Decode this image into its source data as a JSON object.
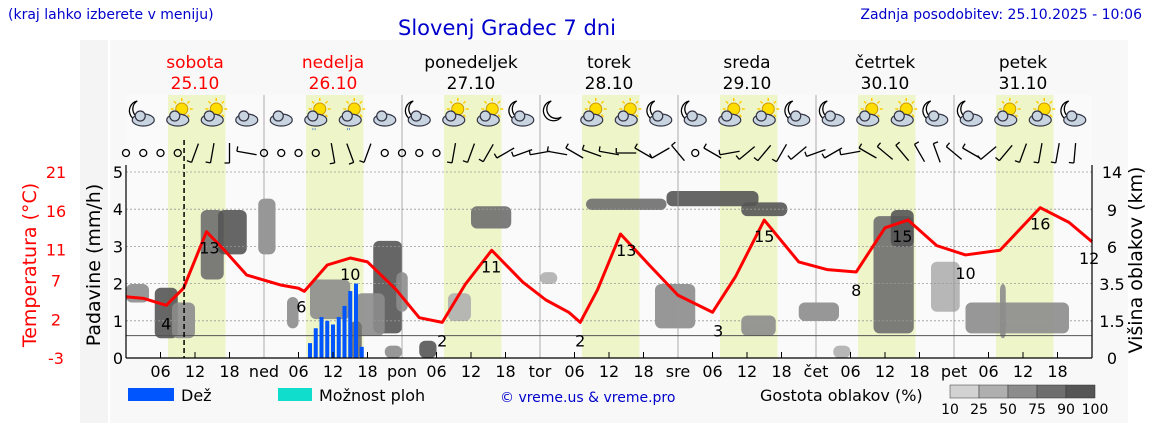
{
  "header": {
    "hint": "(kraj lahko izberete v meniju)",
    "title": "Slovenj Gradec 7 dni",
    "updated": "Zadnja posodobitev: 25.10.2025 - 10:06"
  },
  "days": [
    {
      "name": "sobota",
      "date": "25.10",
      "abbr": "",
      "weekend": true
    },
    {
      "name": "nedelja",
      "date": "26.10",
      "abbr": "ned",
      "weekend": true
    },
    {
      "name": "ponedeljek",
      "date": "27.10",
      "abbr": "pon",
      "weekend": false
    },
    {
      "name": "torek",
      "date": "28.10",
      "abbr": "tor",
      "weekend": false
    },
    {
      "name": "sreda",
      "date": "29.10",
      "abbr": "sre",
      "weekend": false
    },
    {
      "name": "četrtek",
      "date": "30.10",
      "abbr": "čet",
      "weekend": false
    },
    {
      "name": "petek",
      "date": "31.10",
      "abbr": "pet",
      "weekend": false
    }
  ],
  "hour_ticks": [
    "06",
    "12",
    "18"
  ],
  "weather_icons": [
    [
      "moon-cloud",
      "sun-cloud",
      "sun-cloud",
      "cloud"
    ],
    [
      "cloud",
      "sun-cloud-rain",
      "sun-cloud-rain",
      "cloud"
    ],
    [
      "moon-cloud",
      "sun-cloud",
      "sun-cloud",
      "moon-cloud"
    ],
    [
      "moon",
      "sun-cloud",
      "sun-cloud",
      "moon-cloud"
    ],
    [
      "moon-cloud",
      "sun-cloud",
      "sun-cloud",
      "moon-cloud"
    ],
    [
      "moon-cloud",
      "sun-cloud",
      "sun-cloud",
      "moon-cloud"
    ],
    [
      "moon-cloud",
      "sun-cloud",
      "sun-cloud",
      "moon-cloud"
    ]
  ],
  "wind_barbs_deg": [
    null,
    null,
    null,
    null,
    200,
    190,
    180,
    280,
    null,
    null,
    null,
    null,
    170,
    160,
    200,
    null,
    null,
    null,
    null,
    190,
    200,
    210,
    240,
    250,
    260,
    280,
    300,
    290,
    280,
    270,
    300,
    240,
    320,
    null,
    300,
    260,
    230,
    220,
    210,
    230,
    250,
    240,
    260,
    300,
    310,
    320,
    330,
    340,
    310,
    300,
    230,
    220,
    200,
    190,
    190,
    185
  ],
  "chart_data": {
    "type": "meteogram",
    "title": "Slovenj Gradec 7 dni",
    "current_time_hour": 10.1,
    "x_unit": "hours since 25.10 00:00",
    "xlim": [
      0,
      168
    ],
    "left_axes": {
      "temperature": {
        "label": "Temperatura (°C)",
        "ticks": [
          21,
          16,
          11,
          7,
          2,
          -3
        ],
        "color": "#ff0000",
        "ylim": [
          -3,
          21
        ]
      },
      "precipitation": {
        "label": "Padavine (mm/h)",
        "ticks": [
          5,
          4,
          3,
          2,
          1,
          0
        ],
        "ylim": [
          0,
          5
        ]
      }
    },
    "right_axis": {
      "label": "Višina oblakov (km)",
      "ticks": [
        14,
        9.0,
        6.0,
        3.5,
        1.5,
        0
      ]
    },
    "temperature": {
      "x": [
        0,
        3,
        7,
        10,
        14,
        17,
        21,
        27,
        30,
        31,
        35,
        39,
        42,
        47,
        51,
        55,
        59,
        63.6,
        69,
        73,
        77,
        79,
        82,
        86,
        91,
        96,
        102,
        106,
        111,
        117,
        122,
        127,
        132,
        136,
        141,
        146,
        152,
        159,
        164,
        168
      ],
      "y": [
        4.9,
        4.7,
        3.8,
        6.0,
        13.3,
        11.0,
        7.7,
        6.4,
        6.0,
        5.6,
        9.0,
        9.9,
        9.4,
        5.8,
        2.2,
        1.6,
        6.5,
        10.9,
        6.8,
        4.5,
        2.9,
        1.6,
        5.8,
        13.0,
        9.0,
        5.1,
        2.9,
        7.5,
        14.8,
        9.4,
        8.4,
        8.1,
        13.8,
        14.8,
        11.5,
        10.3,
        10.9,
        16.4,
        14.5,
        12.0
      ],
      "labels": [
        {
          "x": 7,
          "text": "4"
        },
        {
          "x": 14.5,
          "text": "13"
        },
        {
          "x": 30.5,
          "text": "6"
        },
        {
          "x": 39,
          "text": "10"
        },
        {
          "x": 55,
          "text": "2"
        },
        {
          "x": 63.5,
          "text": "11"
        },
        {
          "x": 79,
          "text": "2"
        },
        {
          "x": 87,
          "text": "13"
        },
        {
          "x": 103,
          "text": "3"
        },
        {
          "x": 111,
          "text": "15"
        },
        {
          "x": 127,
          "text": "8"
        },
        {
          "x": 135,
          "text": "15"
        },
        {
          "x": 146,
          "text": "10"
        },
        {
          "x": 159,
          "text": "16"
        },
        {
          "x": 167.5,
          "text": "12"
        }
      ]
    },
    "rain": {
      "x": [
        32,
        33,
        34,
        35,
        36,
        37,
        38,
        39,
        40,
        41
      ],
      "mm_h": [
        0.4,
        0.8,
        1.1,
        1.0,
        0.9,
        1.1,
        1.4,
        1.8,
        2.0,
        0.3
      ]
    },
    "showers": {
      "x": [],
      "mm_h": []
    },
    "reference_line_mm_h": 0.6,
    "clouds": [
      [
        0,
        4,
        2.5,
        3.5,
        50
      ],
      [
        5,
        9,
        0.8,
        3.3,
        90
      ],
      [
        8,
        12,
        0.8,
        2.5,
        50
      ],
      [
        13,
        17,
        3.8,
        9,
        75
      ],
      [
        16,
        21,
        5.5,
        9,
        90
      ],
      [
        23,
        26,
        5.5,
        10.5,
        60
      ],
      [
        28,
        30,
        1.2,
        2.8,
        50
      ],
      [
        32,
        39,
        1.6,
        3.8,
        60
      ],
      [
        43,
        48,
        1.0,
        6.5,
        90
      ],
      [
        40,
        45,
        0.9,
        3,
        50
      ],
      [
        47,
        49,
        2,
        4.3,
        50
      ],
      [
        60,
        67,
        7.5,
        9.5,
        75
      ],
      [
        56,
        60,
        1.5,
        3,
        25
      ],
      [
        72,
        75,
        3.5,
        4.3,
        25
      ],
      [
        94,
        110,
        9.5,
        11.5,
        90
      ],
      [
        80,
        94,
        9,
        10.5,
        75
      ],
      [
        107,
        115,
        8.5,
        10,
        90
      ],
      [
        92,
        99,
        1.2,
        3.5,
        50
      ],
      [
        117,
        124,
        1.5,
        2.5,
        50
      ],
      [
        130,
        137,
        1,
        8.5,
        75
      ],
      [
        133,
        137,
        6,
        9,
        90
      ],
      [
        140,
        145,
        2,
        5,
        25
      ],
      [
        146,
        164,
        1,
        2.5,
        50
      ],
      [
        152,
        153,
        0.8,
        3.5,
        60
      ],
      [
        45,
        48,
        0,
        0.5,
        50
      ],
      [
        39,
        41,
        0,
        1.5,
        75
      ],
      [
        51,
        54,
        0,
        0.7,
        90
      ],
      [
        107,
        113,
        0.9,
        1.8,
        50
      ],
      [
        123,
        126,
        0,
        0.5,
        25
      ]
    ]
  },
  "legend": {
    "rain_label": "Dež",
    "rain_color": "#0055ff",
    "showers_label": "Možnost ploh",
    "showers_color": "#11ddcc",
    "copyright": "© vreme.us & vreme.pro",
    "cloud_title": "Gostota oblakov (%)",
    "cloud_scale": [
      "10",
      "25",
      "50",
      "75",
      "90",
      "100"
    ],
    "cloud_colors": [
      "#d2d2d2",
      "#afafaf",
      "#8c8c8c",
      "#6e6e6e",
      "#555555"
    ]
  }
}
